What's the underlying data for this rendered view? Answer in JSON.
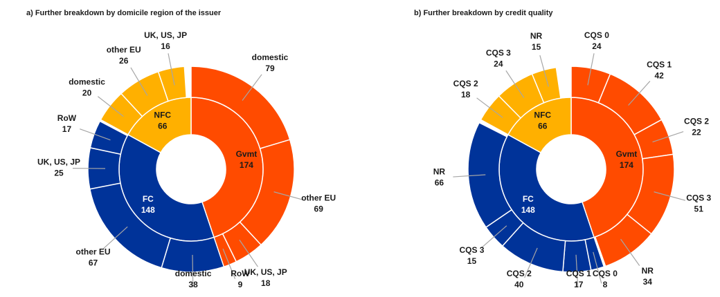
{
  "chart_data": [
    {
      "type": "sunburst",
      "title": "a) Further breakdown by domicile region of the issuer",
      "groups": [
        {
          "name": "Gvmt",
          "value": 174,
          "color": "#ff4b00",
          "label_color": "#1a1a1a",
          "children": [
            {
              "name": "domestic",
              "value": 79
            },
            {
              "name": "other EU",
              "value": 69
            },
            {
              "name": "UK, US, JP",
              "value": 18
            },
            {
              "name": "RoW",
              "value": 9
            }
          ]
        },
        {
          "name": "FC",
          "value": 148,
          "color": "#003399",
          "label_color": "#ffffff",
          "children": [
            {
              "name": "domestic",
              "value": 38
            },
            {
              "name": "other EU",
              "value": 67
            },
            {
              "name": "UK, US, JP",
              "value": 25
            },
            {
              "name": "RoW",
              "value": 17
            }
          ]
        },
        {
          "name": "NFC",
          "value": 66,
          "color": "#ffb000",
          "label_color": "#1a1a1a",
          "children": [
            {
              "name": "domestic",
              "value": 20
            },
            {
              "name": "other EU",
              "value": 26
            },
            {
              "name": "UK, US, JP",
              "value": 16
            }
          ]
        }
      ]
    },
    {
      "type": "sunburst",
      "title": "b) Further breakdown by credit quality",
      "groups": [
        {
          "name": "Gvmt",
          "value": 174,
          "color": "#ff4b00",
          "label_color": "#1a1a1a",
          "children": [
            {
              "name": "CQS 0",
              "value": 24
            },
            {
              "name": "CQS 1",
              "value": 42
            },
            {
              "name": "CQS 2",
              "value": 22
            },
            {
              "name": "CQS 3",
              "value": 51
            },
            {
              "name": "NR",
              "value": 34
            }
          ]
        },
        {
          "name": "FC",
          "value": 148,
          "color": "#003399",
          "label_color": "#ffffff",
          "children": [
            {
              "name": "CQS 0",
              "value": 8
            },
            {
              "name": "CQS 1",
              "value": 17
            },
            {
              "name": "CQS 2",
              "value": 40
            },
            {
              "name": "CQS 3",
              "value": 15
            },
            {
              "name": "NR",
              "value": 66
            }
          ]
        },
        {
          "name": "NFC",
          "value": 66,
          "color": "#ffb000",
          "label_color": "#1a1a1a",
          "children": [
            {
              "name": "CQS 2",
              "value": 18
            },
            {
              "name": "CQS 3",
              "value": 24
            },
            {
              "name": "NR",
              "value": 15
            }
          ]
        }
      ]
    }
  ]
}
